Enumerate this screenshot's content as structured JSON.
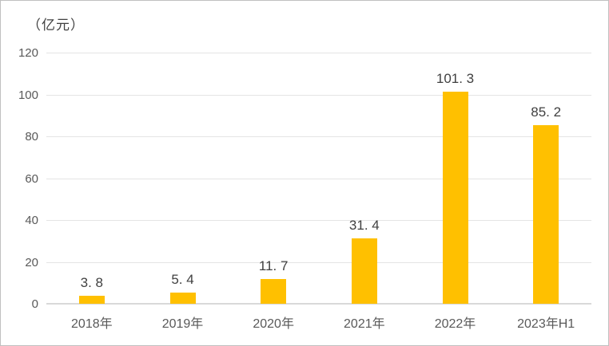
{
  "unit_label": "（亿元）",
  "colors": {
    "bar": "#ffc000",
    "value_label_text": "#404040",
    "axis_text": "#595959",
    "gridline": "#e4e4e4",
    "axis_line": "#d9d9d9",
    "border": "#c0c0c0",
    "background": "#ffffff"
  },
  "chart_data": {
    "type": "bar",
    "title": "",
    "xlabel": "",
    "ylabel": "（亿元）",
    "categories": [
      "2018年",
      "2019年",
      "2020年",
      "2021年",
      "2022年",
      "2023年H1"
    ],
    "values": [
      3.8,
      5.4,
      11.7,
      31.4,
      101.3,
      85.2
    ],
    "value_labels": [
      "3. 8",
      "5. 4",
      "11. 7",
      "31. 4",
      "101. 3",
      "85. 2"
    ],
    "yticks": [
      0,
      20,
      40,
      60,
      80,
      100,
      120
    ],
    "ylim": [
      0,
      120
    ],
    "grid": true,
    "legend": false,
    "bar_color": "#ffc000"
  }
}
